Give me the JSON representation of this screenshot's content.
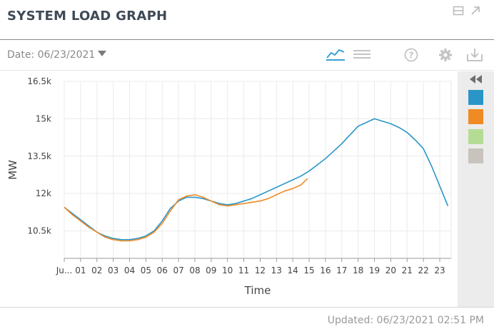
{
  "header": {
    "title": "SYSTEM LOAD GRAPH"
  },
  "toolbar": {
    "date_label": "Date: 06/23/2021"
  },
  "footer": {
    "updated": "Updated: 06/23/2021 02:51 PM"
  },
  "icons": {
    "minimize": "window-minimize-icon",
    "popout": "expand-arrow-icon",
    "line_chart": "line-chart-icon",
    "table": "table-view-icon",
    "help": "help-icon",
    "settings": "gear-icon",
    "download": "download-icon",
    "collapse": "double-chevron-left-icon"
  },
  "colors": {
    "series_blue": "#2a96c8",
    "series_orange": "#f08a24",
    "legend_green": "#b5dc95",
    "legend_gray": "#c8c3bd",
    "active_icon": "#3aa0d2",
    "inactive_icon": "#c4c4c4"
  },
  "legend": {
    "swatches": [
      "#2a96c8",
      "#f08a24",
      "#b5dc95",
      "#c8c3bd"
    ]
  },
  "chart_data": {
    "type": "line",
    "xlabel": "Time",
    "ylabel": "MW",
    "xlim": [
      0,
      23.7
    ],
    "ylim": [
      9400,
      16500
    ],
    "xticks": [
      0,
      1,
      2,
      3,
      4,
      5,
      6,
      7,
      8,
      9,
      10,
      11,
      12,
      13,
      14,
      15,
      16,
      17,
      18,
      19,
      20,
      21,
      22,
      23
    ],
    "xtick_labels": [
      "Ju...",
      "01",
      "02",
      "03",
      "04",
      "05",
      "06",
      "07",
      "08",
      "09",
      "10",
      "11",
      "12",
      "13",
      "14",
      "15",
      "16",
      "17",
      "18",
      "19",
      "20",
      "21",
      "22",
      "23"
    ],
    "yticks": [
      10500,
      12000,
      13500,
      15000,
      16500
    ],
    "ytick_labels": [
      "10.5k",
      "12k",
      "13.5k",
      "15k",
      "16.5k"
    ],
    "grid": true,
    "series": [
      {
        "color": "#2a96c8",
        "x": [
          0,
          0.5,
          1,
          1.5,
          2,
          2.5,
          3,
          3.5,
          4,
          4.5,
          5,
          5.5,
          6,
          6.5,
          7,
          7.5,
          8,
          8.5,
          9,
          9.5,
          10,
          10.5,
          11,
          11.5,
          12,
          12.5,
          13,
          13.5,
          14,
          14.5,
          15,
          15.5,
          16,
          16.5,
          17,
          17.5,
          18,
          18.5,
          19,
          19.5,
          20,
          20.5,
          21,
          21.5,
          22,
          22.5,
          23,
          23.5
        ],
        "y": [
          11450,
          11200,
          10950,
          10700,
          10450,
          10300,
          10200,
          10150,
          10150,
          10200,
          10300,
          10500,
          10900,
          11400,
          11700,
          11850,
          11850,
          11800,
          11700,
          11600,
          11550,
          11600,
          11700,
          11800,
          11950,
          12100,
          12250,
          12400,
          12550,
          12700,
          12900,
          13150,
          13400,
          13700,
          14000,
          14350,
          14700,
          14850,
          15000,
          14900,
          14800,
          14650,
          14450,
          14150,
          13800,
          13100,
          12300,
          11500
        ]
      },
      {
        "color": "#f08a24",
        "x": [
          0,
          0.5,
          1,
          1.5,
          2,
          2.5,
          3,
          3.5,
          4,
          4.5,
          5,
          5.5,
          6,
          6.5,
          7,
          7.5,
          8,
          8.5,
          9,
          9.5,
          10,
          10.5,
          11,
          11.5,
          12,
          12.5,
          13,
          13.5,
          14,
          14.5,
          14.9
        ],
        "y": [
          11450,
          11150,
          10900,
          10650,
          10450,
          10250,
          10150,
          10100,
          10100,
          10150,
          10250,
          10450,
          10800,
          11300,
          11750,
          11900,
          11950,
          11850,
          11700,
          11550,
          11500,
          11550,
          11600,
          11650,
          11700,
          11800,
          11950,
          12100,
          12200,
          12350,
          12600
        ]
      }
    ]
  }
}
